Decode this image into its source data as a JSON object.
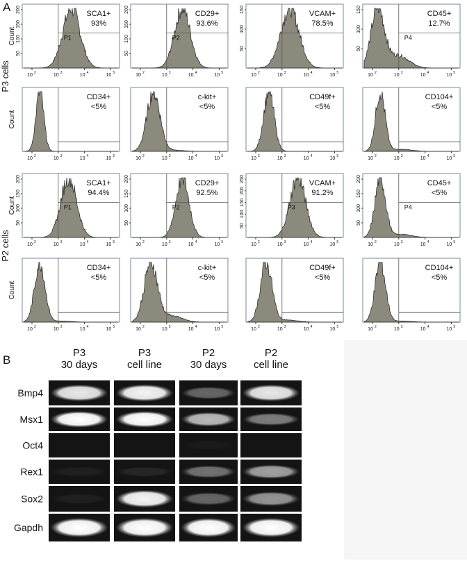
{
  "panel_a": {
    "label": "A",
    "y_label": "Count",
    "x_tick_base": "10",
    "x_tick_exponents": [
      "2",
      "3",
      "4",
      "5"
    ],
    "groups": [
      {
        "label": "P3 cells",
        "rows": [
          [
            {
              "marker": "SCA1+",
              "percent": "93%",
              "gate": "P1",
              "yticks": [
                "50",
                "100",
                "150",
                "200"
              ]
            },
            {
              "marker": "CD29+",
              "percent": "93.6%",
              "gate": "P2",
              "yticks": [
                "50",
                "100",
                "150",
                "200"
              ]
            },
            {
              "marker": "VCAM+",
              "percent": "78.5%",
              "yticks": [
                "50",
                "100",
                "150"
              ]
            },
            {
              "marker": "CD45+",
              "percent": "12.7%",
              "gate": "P4",
              "yticks": [
                "50",
                "100",
                "150"
              ]
            }
          ],
          [
            {
              "marker": "CD34+",
              "percent": "<5%"
            },
            {
              "marker": "c-kit+",
              "percent": "<5%"
            },
            {
              "marker": "CD49f+",
              "percent": "<5%"
            },
            {
              "marker": "CD104+",
              "percent": "<5%"
            }
          ]
        ]
      },
      {
        "label": "P2 cells",
        "rows": [
          [
            {
              "marker": "SCA1+",
              "percent": "94.4%",
              "gate": "P1",
              "yticks": [
                "50",
                "100",
                "150",
                "200"
              ]
            },
            {
              "marker": "CD29+",
              "percent": "92.5%",
              "gate": "P2",
              "yticks": [
                "50",
                "100",
                "150",
                "200"
              ]
            },
            {
              "marker": "VCAM+",
              "percent": "91.2%",
              "gate": "P3",
              "yticks": [
                "50",
                "100",
                "150",
                "200",
                "250"
              ]
            },
            {
              "marker": "CD45+",
              "percent": "<5%",
              "gate": "P4",
              "yticks": [
                "50",
                "100",
                "150",
                "200"
              ]
            }
          ],
          [
            {
              "marker": "CD34+",
              "percent": "<5%"
            },
            {
              "marker": "c-kit+",
              "percent": "<5%"
            },
            {
              "marker": "CD49f+",
              "percent": "<5%"
            },
            {
              "marker": "CD104+",
              "percent": "<5%"
            }
          ]
        ]
      }
    ]
  },
  "panel_b": {
    "label": "B",
    "columns": [
      [
        "P3",
        "30 days"
      ],
      [
        "P3",
        "cell line"
      ],
      [
        "P2",
        "30 days"
      ],
      [
        "P2",
        "cell line"
      ]
    ],
    "genes": [
      "Bmp4",
      "Msx1",
      "Oct4",
      "Rex1",
      "Sox2",
      "Gapdh"
    ]
  }
}
